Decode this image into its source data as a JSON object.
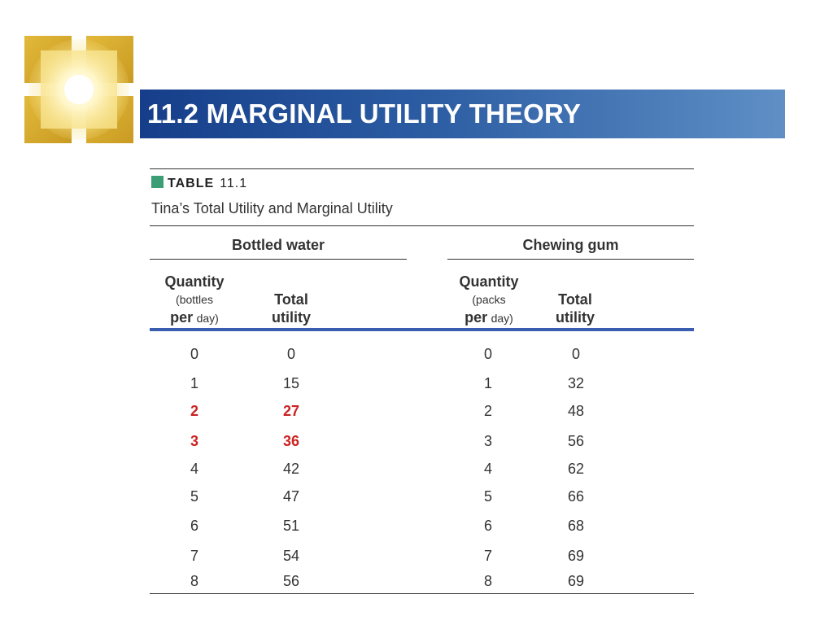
{
  "slide": {
    "title": "11.2 MARGINAL UTILITY THEORY"
  },
  "table": {
    "label": "TABLE",
    "number": "11.1",
    "caption": "Tina’s Total Utility and Marginal Utility",
    "groups": [
      {
        "name": "Bottled water",
        "quantity_header": {
          "line1": "Quantity",
          "line2": "(bottles",
          "line3a": "per",
          "line3b": "day)"
        },
        "utility_header": {
          "line1": "Total",
          "line2": "utility"
        },
        "rows": [
          {
            "quantity": "0",
            "utility": "0",
            "highlight": false
          },
          {
            "quantity": "1",
            "utility": "15",
            "highlight": false
          },
          {
            "quantity": "2",
            "utility": "27",
            "highlight": true
          },
          {
            "quantity": "3",
            "utility": "36",
            "highlight": true
          },
          {
            "quantity": "4",
            "utility": "42",
            "highlight": false
          },
          {
            "quantity": "5",
            "utility": "47",
            "highlight": false
          },
          {
            "quantity": "6",
            "utility": "51",
            "highlight": false
          },
          {
            "quantity": "7",
            "utility": "54",
            "highlight": false
          },
          {
            "quantity": "8",
            "utility": "56",
            "highlight": false
          }
        ]
      },
      {
        "name": "Chewing gum",
        "quantity_header": {
          "line1": "Quantity",
          "line2": "(packs",
          "line3a": "per",
          "line3b": "day)"
        },
        "utility_header": {
          "line1": "Total",
          "line2": "utility"
        },
        "rows": [
          {
            "quantity": "0",
            "utility": "0",
            "highlight": false
          },
          {
            "quantity": "1",
            "utility": "32",
            "highlight": false
          },
          {
            "quantity": "2",
            "utility": "48",
            "highlight": false
          },
          {
            "quantity": "3",
            "utility": "56",
            "highlight": false
          },
          {
            "quantity": "4",
            "utility": "62",
            "highlight": false
          },
          {
            "quantity": "5",
            "utility": "66",
            "highlight": false
          },
          {
            "quantity": "6",
            "utility": "68",
            "highlight": false
          },
          {
            "quantity": "7",
            "utility": "69",
            "highlight": false
          },
          {
            "quantity": "8",
            "utility": "69",
            "highlight": false
          }
        ]
      }
    ]
  },
  "colors": {
    "title_bar": "#163e8a",
    "highlight_text": "#cc2222",
    "label_square": "#3c9e74",
    "header_rule": "#3a5db0"
  }
}
